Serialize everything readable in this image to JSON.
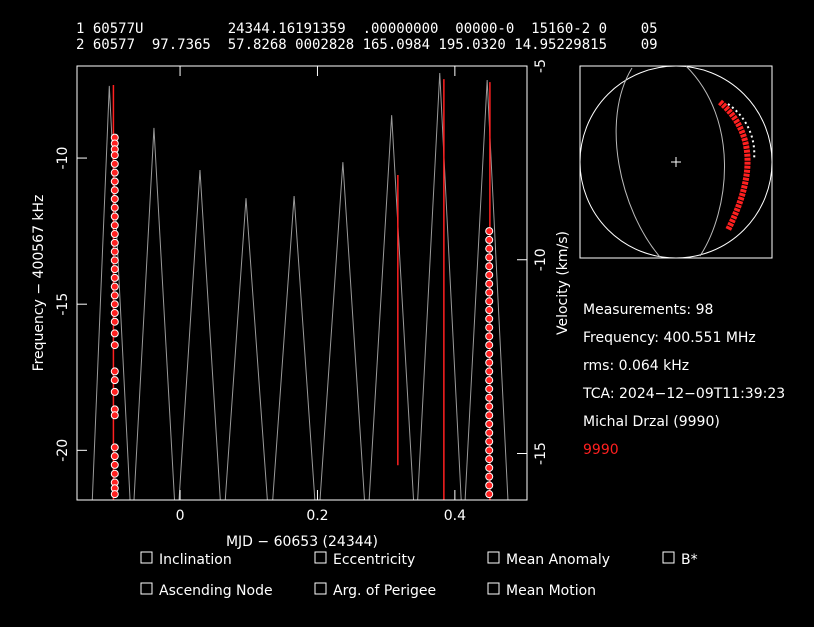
{
  "header": {
    "line1": "1 60577U          24344.16191359  .00000000  00000-0  15160-2 0    05",
    "line2": "2 60577  97.7365  57.8268 0002828 165.0984 195.0320 14.95229815    09"
  },
  "chart_data": {
    "type": "scatter",
    "x_label": "MJD − 60653 (24344)",
    "y_label": "Frequency − 400567 kHz",
    "y2_label": "Velocity (km/s)",
    "xlim": [
      -0.15,
      0.505
    ],
    "xticks": [
      0,
      0.2,
      0.4
    ],
    "ylim": [
      -21.7,
      -6.85
    ],
    "yticks": [
      -10,
      -15,
      -20
    ],
    "y2lim": [
      -16.2,
      -5
    ],
    "y2ticks": [
      -5,
      -10,
      -15
    ],
    "series": [
      {
        "color": "#ff2020",
        "x": [
          -0.095,
          -0.095,
          -0.095,
          -0.095,
          -0.095,
          -0.095,
          -0.095,
          -0.095,
          -0.095,
          -0.095,
          -0.095,
          -0.095,
          -0.095,
          -0.095,
          -0.095,
          -0.095,
          -0.095,
          -0.095,
          -0.095,
          -0.095,
          -0.095,
          -0.095,
          -0.095,
          -0.095,
          -0.095,
          -0.095,
          -0.095,
          -0.095,
          -0.095,
          -0.095,
          -0.095,
          -0.095,
          -0.095,
          -0.095,
          -0.095,
          -0.095,
          -0.095
        ],
        "values": [
          -9.3,
          -9.5,
          -9.7,
          -9.9,
          -10.2,
          -10.5,
          -10.8,
          -11.1,
          -11.4,
          -11.7,
          -12.0,
          -12.3,
          -12.6,
          -12.9,
          -13.2,
          -13.5,
          -13.8,
          -14.1,
          -14.4,
          -14.7,
          -15.0,
          -15.3,
          -15.6,
          -16.0,
          -16.4,
          -17.3,
          -17.6,
          -18.0,
          -18.6,
          -18.8,
          -19.9,
          -20.2,
          -20.5,
          -20.8,
          -21.1,
          -21.3,
          -21.5
        ]
      },
      {
        "color": "#ff2020",
        "x": [
          0.45,
          0.45,
          0.45,
          0.45,
          0.45,
          0.45,
          0.45,
          0.45,
          0.45,
          0.45,
          0.45,
          0.45,
          0.45,
          0.45,
          0.45,
          0.45,
          0.45,
          0.45,
          0.45,
          0.45,
          0.45,
          0.45,
          0.45,
          0.45,
          0.45,
          0.45,
          0.45,
          0.45,
          0.45,
          0.45,
          0.45
        ],
        "values": [
          -12.5,
          -12.8,
          -13.1,
          -13.4,
          -13.7,
          -14.0,
          -14.3,
          -14.6,
          -14.9,
          -15.2,
          -15.5,
          -15.8,
          -16.1,
          -16.4,
          -16.7,
          -17.0,
          -17.3,
          -17.6,
          -17.9,
          -18.2,
          -18.5,
          -18.8,
          -19.1,
          -19.4,
          -19.7,
          -20.0,
          -20.3,
          -20.6,
          -20.9,
          -21.2,
          -21.5
        ]
      }
    ],
    "model": {
      "color": "#9a9a9a",
      "x": [
        -0.13,
        -0.103,
        -0.07,
        -0.038,
        -0.005,
        0.029,
        0.062,
        0.096,
        0.131,
        0.166,
        0.2,
        0.237,
        0.272,
        0.308,
        0.343,
        0.378,
        0.412,
        0.447,
        0.48
      ],
      "values": [
        -23,
        -7.53,
        -23,
        -8.97,
        -23,
        -10.41,
        -23,
        -11.37,
        -23,
        -11.3,
        -23,
        -10.14,
        -23,
        -8.53,
        -23,
        -7.09,
        -23,
        -7.33,
        -23
      ]
    },
    "tracks": {
      "color": "#ff2020",
      "x": [
        -0.097,
        0.317,
        0.384,
        0.451
      ],
      "top": [
        -7.5,
        -10.58,
        -7.3,
        -7.4
      ],
      "bottom": [
        -21.7,
        -20.51,
        -21.7,
        -21.7
      ]
    }
  },
  "info": {
    "measurements": "Measurements: 98",
    "frequency": "Frequency: 400.551 MHz",
    "rms": "rms: 0.064 kHz",
    "tca": "TCA: 2024−12−09T11:39:23",
    "observer": "Michal Drzal (9990)",
    "site": "9990"
  },
  "options": [
    "Inclination",
    "Eccentricity",
    "Mean Anomaly",
    "B*",
    "Ascending Node",
    "Arg. of Perigee",
    "Mean Motion"
  ]
}
